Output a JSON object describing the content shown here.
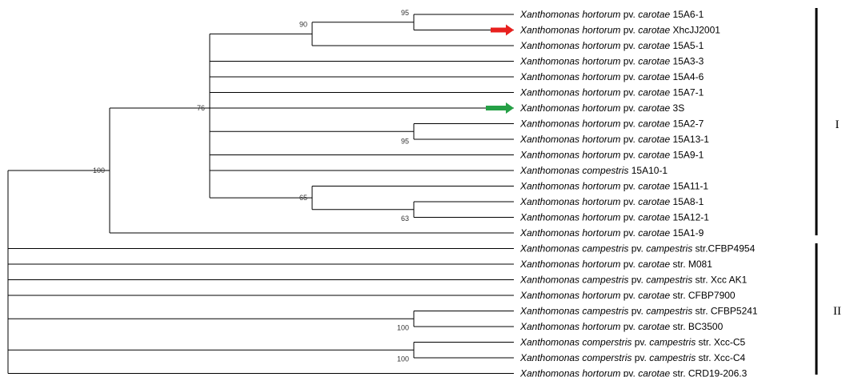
{
  "leaves": [
    {
      "genus_species": "Xanthomonas hortorum",
      "pv_word": "pv.",
      "pathovar": "carotae",
      "strain": "15A6-1"
    },
    {
      "genus_species": "Xanthomonas hortorum",
      "pv_word": "pv.",
      "pathovar": "carotae",
      "strain": "XhcJJ2001"
    },
    {
      "genus_species": "Xanthomonas hortorum",
      "pv_word": "pv.",
      "pathovar": "carotae",
      "strain": "15A5-1"
    },
    {
      "genus_species": "Xanthomonas hortorum",
      "pv_word": "pv.",
      "pathovar": "carotae",
      "strain": "15A3-3"
    },
    {
      "genus_species": "Xanthomonas hortorum",
      "pv_word": "pv.",
      "pathovar": "carotae",
      "strain": "15A4-6"
    },
    {
      "genus_species": "Xanthomonas hortorum",
      "pv_word": "pv.",
      "pathovar": "carotae",
      "strain": "15A7-1"
    },
    {
      "genus_species": "Xanthomonas hortorum",
      "pv_word": "pv.",
      "pathovar": "carotae",
      "strain": "3S"
    },
    {
      "genus_species": "Xanthomonas hortorum",
      "pv_word": "pv.",
      "pathovar": "carotae",
      "strain": "15A2-7"
    },
    {
      "genus_species": "Xanthomonas hortorum",
      "pv_word": "pv.",
      "pathovar": "carotae",
      "strain": "15A13-1"
    },
    {
      "genus_species": "Xanthomonas hortorum",
      "pv_word": "pv.",
      "pathovar": "carotae",
      "strain": "15A9-1"
    },
    {
      "genus_species": "Xanthomonas compestris",
      "pv_word": "",
      "pathovar": "",
      "strain": "15A10-1"
    },
    {
      "genus_species": "Xanthomonas hortorum",
      "pv_word": "pv.",
      "pathovar": "carotae",
      "strain": "15A11-1"
    },
    {
      "genus_species": "Xanthomonas hortorum",
      "pv_word": "pv.",
      "pathovar": "carotae",
      "strain": "15A8-1"
    },
    {
      "genus_species": "Xanthomonas hortorum",
      "pv_word": "pv.",
      "pathovar": "carotae",
      "strain": "15A12-1"
    },
    {
      "genus_species": "Xanthomonas hortorum",
      "pv_word": "pv.",
      "pathovar": "carotae",
      "strain": "15A1-9"
    },
    {
      "genus_species": "Xanthomonas campestris",
      "pv_word": "pv.",
      "pathovar": "campestris",
      "strain": "str.CFBP4954"
    },
    {
      "genus_species": "Xanthomonas hortorum",
      "pv_word": "pv.",
      "pathovar": "carotae",
      "strain": "str. M081"
    },
    {
      "genus_species": "Xanthomonas campestris",
      "pv_word": "pv.",
      "pathovar": "campestris",
      "strain": "str. Xcc AK1"
    },
    {
      "genus_species": "Xanthomonas hortorum",
      "pv_word": "pv.",
      "pathovar": "carotae",
      "strain": "str. CFBP7900"
    },
    {
      "genus_species": "Xanthomonas campestris",
      "pv_word": "pv.",
      "pathovar": "campestris",
      "strain": "str. CFBP5241"
    },
    {
      "genus_species": "Xanthomonas hortorum",
      "pv_word": "pv.",
      "pathovar": "carotae",
      "strain": "str. BC3500"
    },
    {
      "genus_species": "Xanthomonas comperstris",
      "pv_word": "pv.",
      "pathovar": "campestris",
      "strain": "str. Xcc-C5"
    },
    {
      "genus_species": "Xanthomonas comperstris",
      "pv_word": "pv.",
      "pathovar": "campestris",
      "strain": "str. Xcc-C4"
    },
    {
      "genus_species": "Xanthomonas hortorum",
      "pv_word": "pv.",
      "pathovar": "carotae",
      "strain": "str. CRD19-206.3"
    }
  ],
  "bootstrap": {
    "n95a": "95",
    "n90": "90",
    "n76": "76",
    "n95b": "95",
    "n100a": "100",
    "n65": "65",
    "n63": "63",
    "n100b": "100",
    "n100c": "100"
  },
  "clades": [
    {
      "label": "I"
    },
    {
      "label": "II"
    }
  ],
  "markers": [
    {
      "leaf": "XhcJJ2001",
      "color": "#e8201e",
      "icon": "arrow-right-icon"
    },
    {
      "leaf": "3S",
      "color": "#25a046",
      "icon": "arrow-right-icon"
    }
  ]
}
